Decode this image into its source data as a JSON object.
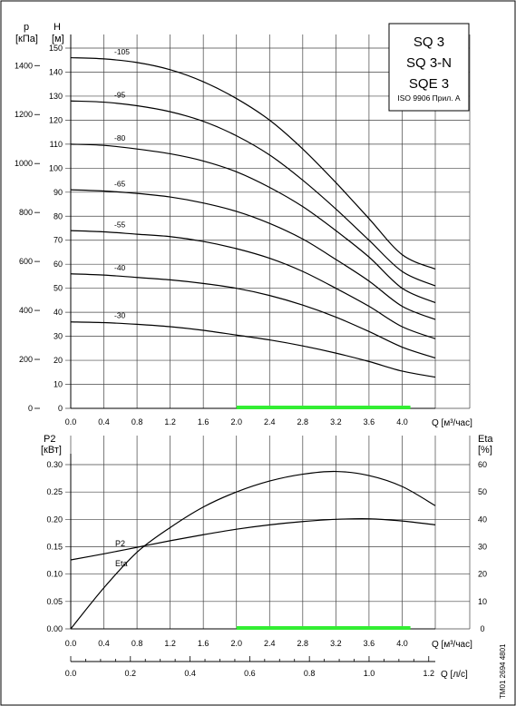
{
  "chart_data": [
    {
      "type": "line",
      "title_box": {
        "lines": [
          "SQ 3",
          "SQ 3-N",
          "SQE 3"
        ],
        "note": "ISO 9906 Прил. А"
      },
      "left_axis": {
        "symbol": "p",
        "unit": "[кПа]",
        "ticks": [
          0,
          200,
          400,
          600,
          800,
          1000,
          1200,
          1400
        ]
      },
      "y_axis": {
        "symbol": "H",
        "unit": "[м]",
        "ylim": [
          0,
          150
        ],
        "ticks": [
          0,
          10,
          20,
          30,
          40,
          50,
          60,
          70,
          80,
          90,
          100,
          110,
          120,
          130,
          140,
          150
        ]
      },
      "x_axis": {
        "label": "Q [м³/час]",
        "xlim": [
          0,
          4.4
        ],
        "ticks": [
          "0.0",
          "0.4",
          "0.8",
          "1.2",
          "1.6",
          "2.0",
          "2.4",
          "2.8",
          "3.2",
          "3.6",
          "4.0"
        ]
      },
      "grid": true,
      "recommended_range": {
        "from": 2.0,
        "to": 4.1,
        "color": "#33ee33"
      },
      "curve_color": "#000000",
      "series": [
        {
          "name": "-105",
          "x": [
            0,
            0.4,
            0.8,
            1.2,
            1.6,
            2.0,
            2.4,
            2.8,
            3.2,
            3.6,
            4.0,
            4.4
          ],
          "values": [
            146,
            145.5,
            144,
            141,
            136,
            129,
            120,
            108,
            94,
            79,
            64,
            58
          ]
        },
        {
          "name": "-95",
          "x": [
            0,
            0.4,
            0.8,
            1.2,
            1.6,
            2.0,
            2.4,
            2.8,
            3.2,
            3.6,
            4.0,
            4.4
          ],
          "values": [
            128,
            127.5,
            126,
            123.5,
            119.5,
            113.5,
            105.5,
            95,
            83,
            70,
            57,
            51
          ]
        },
        {
          "name": "-80",
          "x": [
            0,
            0.4,
            0.8,
            1.2,
            1.6,
            2.0,
            2.4,
            2.8,
            3.2,
            3.6,
            4.0,
            4.4
          ],
          "values": [
            110,
            109.5,
            108,
            106,
            103,
            98.5,
            92,
            84,
            74,
            63,
            50,
            44
          ]
        },
        {
          "name": "-65",
          "x": [
            0,
            0.4,
            0.8,
            1.2,
            1.6,
            2.0,
            2.4,
            2.8,
            3.2,
            3.6,
            4.0,
            4.4
          ],
          "values": [
            91,
            90.5,
            89.5,
            88,
            85.5,
            82,
            77,
            70.5,
            62,
            53,
            42.5,
            37
          ]
        },
        {
          "name": "-55",
          "x": [
            0,
            0.4,
            0.8,
            1.2,
            1.6,
            2.0,
            2.4,
            2.8,
            3.2,
            3.6,
            4.0,
            4.4
          ],
          "values": [
            74,
            73.5,
            72.5,
            71.5,
            69.5,
            66.5,
            62.5,
            57,
            50,
            42.5,
            34,
            29
          ]
        },
        {
          "name": "-40",
          "x": [
            0,
            0.4,
            0.8,
            1.2,
            1.6,
            2.0,
            2.4,
            2.8,
            3.2,
            3.6,
            4.0,
            4.4
          ],
          "values": [
            56,
            55.5,
            54.5,
            53.5,
            52,
            50,
            47,
            43,
            38,
            32,
            25.5,
            21
          ]
        },
        {
          "name": "-30",
          "x": [
            0,
            0.4,
            0.8,
            1.2,
            1.6,
            2.0,
            2.4,
            2.8,
            3.2,
            3.6,
            4.0,
            4.4
          ],
          "values": [
            36,
            35.7,
            35,
            34,
            32.5,
            30.5,
            28.5,
            26,
            23,
            19.5,
            15.5,
            13
          ]
        }
      ]
    },
    {
      "type": "line",
      "left_axis": {
        "symbol": "P2",
        "unit": "[кВт]",
        "ylim": [
          0,
          0.35
        ],
        "ticks": [
          "0.00",
          "0.05",
          "0.10",
          "0.15",
          "0.20",
          "0.25",
          "0.30"
        ]
      },
      "right_axis": {
        "symbol": "Eta",
        "unit": "[%]",
        "ylim": [
          0,
          70
        ],
        "ticks": [
          "0",
          "10",
          "20",
          "30",
          "40",
          "50",
          "60"
        ]
      },
      "x_axis": {
        "label": "Q [м³/час]",
        "xlim": [
          0,
          4.4
        ],
        "ticks": [
          "0.0",
          "0.4",
          "0.8",
          "1.2",
          "1.6",
          "2.0",
          "2.4",
          "2.8",
          "3.2",
          "3.6",
          "4.0"
        ]
      },
      "x_axis_secondary": {
        "label": "Q [л/с]",
        "xlim": [
          0,
          1.222
        ],
        "ticks": [
          "0.0",
          "0.2",
          "0.4",
          "0.6",
          "0.8",
          "1.0",
          "1.2"
        ]
      },
      "grid": true,
      "recommended_range": {
        "from": 2.0,
        "to": 4.1,
        "color": "#33ee33"
      },
      "series": [
        {
          "name": "P2",
          "axis": "left",
          "x": [
            0,
            0.4,
            0.8,
            1.2,
            1.6,
            2.0,
            2.4,
            2.8,
            3.2,
            3.6,
            4.0,
            4.4
          ],
          "values": [
            0.126,
            0.137,
            0.149,
            0.161,
            0.172,
            0.182,
            0.19,
            0.196,
            0.2,
            0.201,
            0.197,
            0.19
          ]
        },
        {
          "name": "Eta",
          "axis": "right",
          "x": [
            0,
            0.4,
            0.8,
            1.2,
            1.6,
            2.0,
            2.4,
            2.8,
            3.2,
            3.6,
            4.0,
            4.4
          ],
          "values": [
            0,
            15,
            28,
            37,
            44.5,
            50,
            54,
            56.5,
            57.5,
            56,
            52,
            45
          ]
        }
      ]
    }
  ],
  "footer_code": "TM01 2694 4801"
}
